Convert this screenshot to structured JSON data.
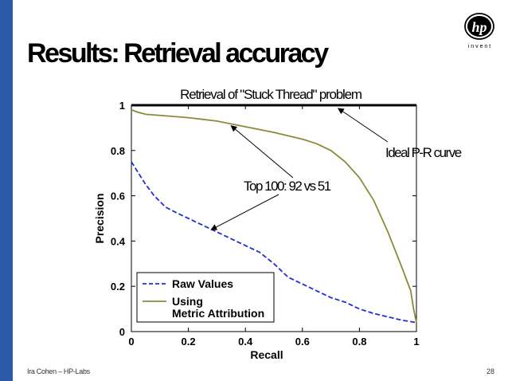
{
  "slide": {
    "title": "Results: Retrieval accuracy",
    "footer_left": "Ira Cohen – HP-Labs",
    "page_number": "28",
    "logo": {
      "brand": "hp",
      "tagline": "i n v e n t"
    },
    "colors": {
      "left_bar": "#2a5aa8",
      "raw_values": "#1f2fd6",
      "metric_attribution": "#8c8a3a",
      "ideal": "#000000"
    }
  },
  "chart_data": {
    "type": "line",
    "title": "Retrieval of \"Stuck Thread\" problem",
    "xlabel": "Recall",
    "ylabel": "Precision",
    "xlim": [
      0,
      1
    ],
    "ylim": [
      0,
      1
    ],
    "x_ticks": [
      "0",
      "0.2",
      "0.4",
      "0.6",
      "0.8",
      "1"
    ],
    "y_ticks": [
      "0",
      "0.2",
      "0.4",
      "0.6",
      "0.8",
      "1"
    ],
    "grid": false,
    "legend_placement": "bottom-left",
    "series": [
      {
        "name": "Raw Values",
        "style": "dashed",
        "color": "#1f2fd6",
        "x": [
          0.0,
          0.02,
          0.05,
          0.08,
          0.12,
          0.15,
          0.2,
          0.25,
          0.3,
          0.35,
          0.4,
          0.45,
          0.5,
          0.55,
          0.6,
          0.65,
          0.7,
          0.75,
          0.8,
          0.85,
          0.9,
          0.95,
          1.0
        ],
        "values": [
          0.75,
          0.71,
          0.65,
          0.6,
          0.55,
          0.53,
          0.5,
          0.47,
          0.44,
          0.41,
          0.38,
          0.35,
          0.3,
          0.24,
          0.21,
          0.18,
          0.15,
          0.13,
          0.1,
          0.08,
          0.065,
          0.05,
          0.04
        ]
      },
      {
        "name": "Using Metric Attribution",
        "style": "solid",
        "color": "#8c8a3a",
        "x": [
          0.0,
          0.02,
          0.05,
          0.1,
          0.2,
          0.3,
          0.4,
          0.5,
          0.6,
          0.65,
          0.7,
          0.75,
          0.8,
          0.85,
          0.9,
          0.95,
          0.98,
          0.99,
          1.0
        ],
        "values": [
          0.98,
          0.97,
          0.96,
          0.955,
          0.945,
          0.93,
          0.905,
          0.88,
          0.85,
          0.83,
          0.8,
          0.75,
          0.68,
          0.58,
          0.44,
          0.28,
          0.18,
          0.1,
          0.04
        ]
      },
      {
        "name": "Ideal P-R curve",
        "style": "solid",
        "color": "#000000",
        "x": [
          0,
          1
        ],
        "values": [
          1,
          1
        ]
      }
    ],
    "legend": [
      {
        "label_lines": [
          "Raw Values"
        ],
        "style": "dashed",
        "color": "#1f2fd6"
      },
      {
        "label_lines": [
          "Using",
          "Metric Attribution"
        ],
        "style": "solid",
        "color": "#8c8a3a"
      }
    ],
    "annotations": [
      {
        "text": "Ideal P-R curve",
        "points_to": [
          0.72,
          1.0
        ]
      },
      {
        "text": "Top 100: 92 vs 51",
        "points_to": [
          [
            0.35,
            0.92
          ],
          [
            0.28,
            0.45
          ]
        ]
      }
    ]
  }
}
